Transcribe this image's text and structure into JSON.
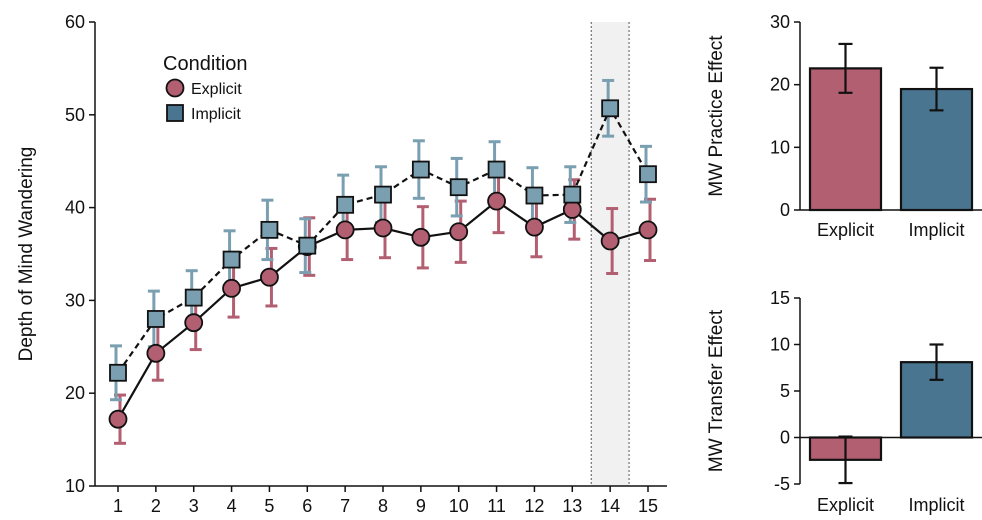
{
  "chart_data": [
    {
      "type": "line",
      "ylabel": "Depth of Mind Wandering",
      "ylim": [
        10,
        60
      ],
      "yticks": [
        10,
        20,
        30,
        40,
        50,
        60
      ],
      "x": [
        1,
        2,
        3,
        4,
        5,
        6,
        7,
        8,
        9,
        10,
        11,
        12,
        13,
        14,
        15
      ],
      "highlight_x": 14,
      "legend": {
        "title": "Condition",
        "placement": "top-left"
      },
      "series": [
        {
          "name": "Explicit",
          "color": "#b35f72",
          "marker": "circle",
          "line": "solid",
          "values": [
            17.2,
            24.3,
            27.6,
            31.3,
            32.5,
            35.8,
            37.6,
            37.8,
            36.8,
            37.4,
            40.7,
            37.9,
            39.8,
            36.4,
            37.6
          ],
          "errors": [
            2.6,
            2.9,
            2.9,
            3.1,
            3.1,
            3.1,
            3.2,
            3.2,
            3.3,
            3.3,
            3.4,
            3.2,
            3.2,
            3.5,
            3.3
          ]
        },
        {
          "name": "Implicit",
          "color": "#7a9fb1",
          "marker": "square",
          "line": "dashed",
          "values": [
            22.2,
            28.0,
            30.3,
            34.4,
            37.6,
            35.9,
            40.3,
            41.4,
            44.1,
            42.2,
            44.1,
            41.3,
            41.4,
            50.7,
            43.6
          ],
          "errors": [
            2.9,
            3.0,
            2.9,
            3.1,
            3.2,
            2.9,
            3.2,
            3.0,
            3.1,
            3.1,
            3.0,
            3.0,
            3.0,
            3.0,
            3.0
          ]
        }
      ]
    },
    {
      "type": "bar",
      "ylabel": "MW Practice Effect",
      "ylim": [
        0,
        30
      ],
      "yticks": [
        0,
        10,
        20,
        30
      ],
      "categories": [
        "Explicit",
        "Implicit"
      ],
      "values": [
        22.6,
        19.3
      ],
      "errors": [
        3.9,
        3.4
      ],
      "colors": [
        "#b35f72",
        "#4a7591"
      ]
    },
    {
      "type": "bar",
      "ylabel": "MW Transfer Effect",
      "ylim": [
        -5,
        15
      ],
      "yticks": [
        -5,
        0,
        5,
        10,
        15
      ],
      "categories": [
        "Explicit",
        "Implicit"
      ],
      "values": [
        -2.4,
        8.1
      ],
      "errors": [
        2.5,
        1.9
      ],
      "colors": [
        "#b35f72",
        "#4a7591"
      ]
    }
  ]
}
